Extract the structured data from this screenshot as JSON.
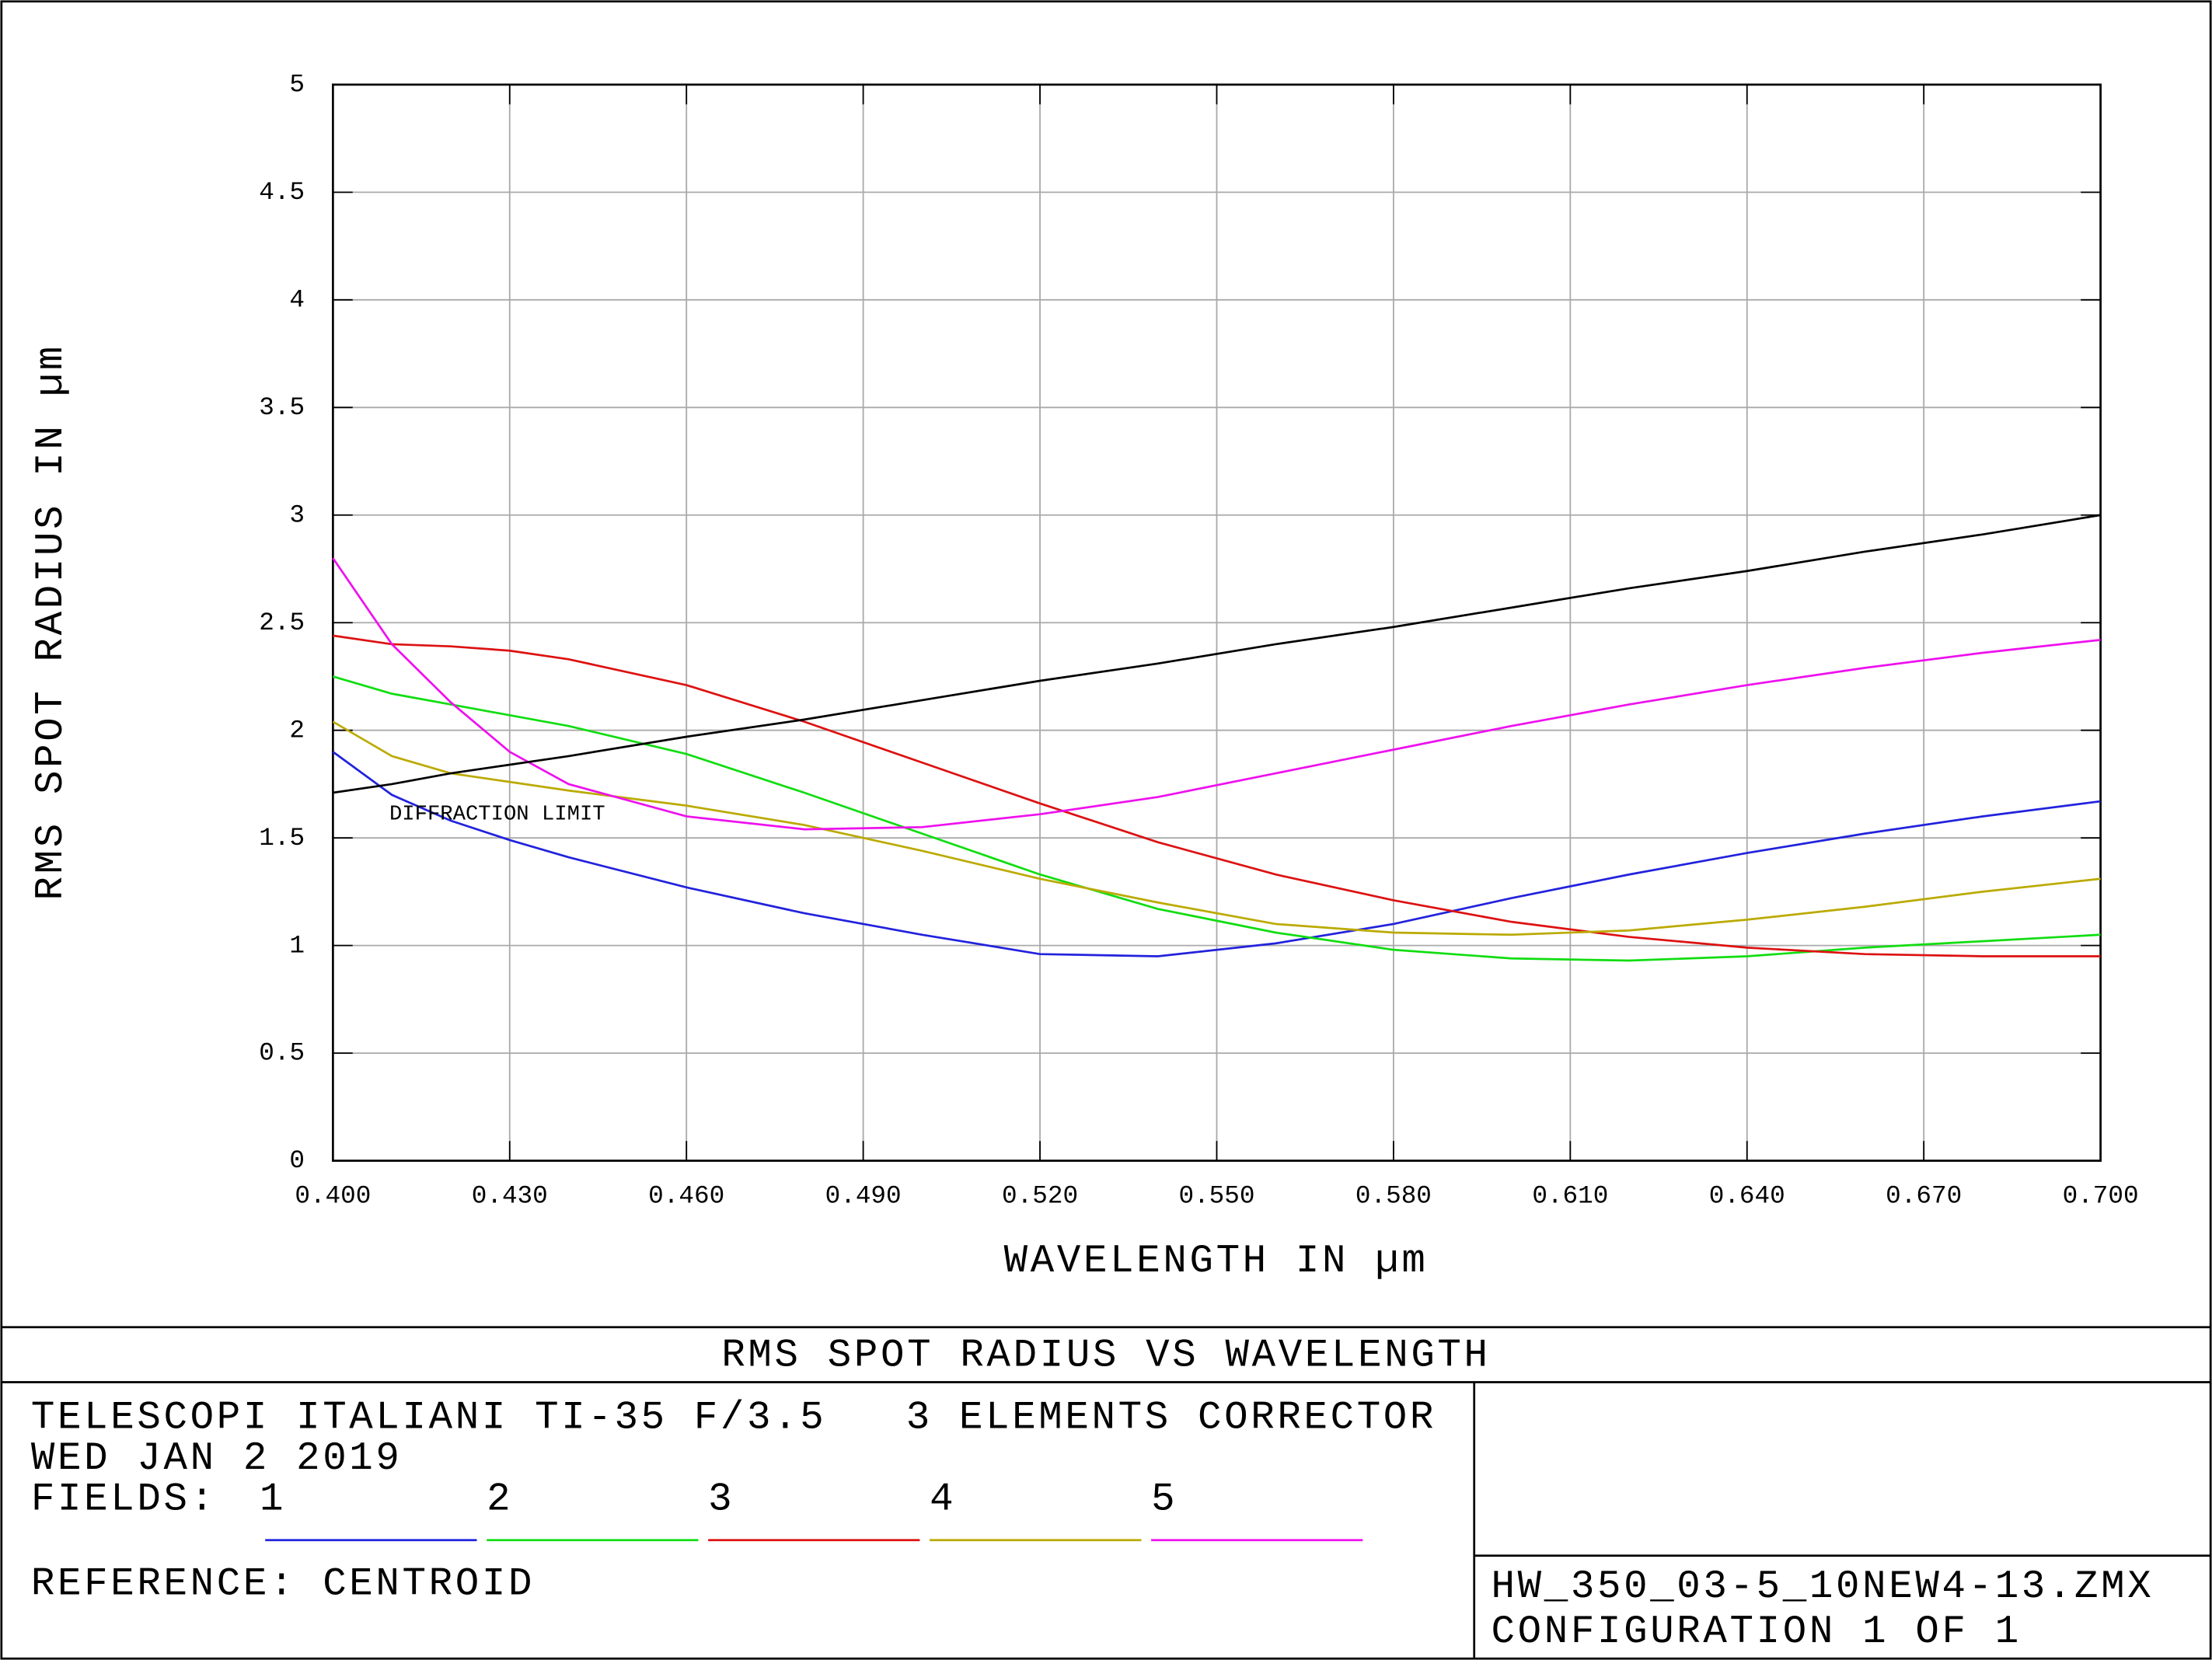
{
  "chart_data": {
    "type": "line",
    "title": "RMS SPOT RADIUS VS WAVELENGTH",
    "xlabel": "WAVELENGTH IN µm",
    "ylabel": "RMS SPOT RADIUS IN µm",
    "description": [
      "TELESCOPI ITALIANI TI-35 F/3.5   3 ELEMENTS CORRECTOR",
      "WED JAN 2 2019"
    ],
    "legend_title": "FIELDS:",
    "reference": "REFERENCE: CENTROID",
    "file": "HW_350_03-5_10NEW4-13.ZMX",
    "configuration": "CONFIGURATION 1 OF 1",
    "grid": true,
    "x": [
      0.4,
      0.41,
      0.42,
      0.43,
      0.44,
      0.46,
      0.48,
      0.5,
      0.52,
      0.54,
      0.56,
      0.58,
      0.6,
      0.62,
      0.64,
      0.66,
      0.68,
      0.7
    ],
    "xlim": [
      0.4,
      0.7
    ],
    "xticks": [
      {
        "value": 0.4,
        "label": "0.400"
      },
      {
        "value": 0.43,
        "label": "0.430"
      },
      {
        "value": 0.46,
        "label": "0.460"
      },
      {
        "value": 0.49,
        "label": "0.490"
      },
      {
        "value": 0.52,
        "label": "0.520"
      },
      {
        "value": 0.55,
        "label": "0.550"
      },
      {
        "value": 0.58,
        "label": "0.580"
      },
      {
        "value": 0.61,
        "label": "0.610"
      },
      {
        "value": 0.64,
        "label": "0.640"
      },
      {
        "value": 0.67,
        "label": "0.670"
      },
      {
        "value": 0.7,
        "label": "0.700"
      }
    ],
    "ylim": [
      0,
      5
    ],
    "yticks": [
      0,
      0.5,
      1,
      1.5,
      2,
      2.5,
      3,
      3.5,
      4,
      4.5,
      5
    ],
    "series": [
      {
        "name": "1",
        "color": "#2222dd",
        "values": [
          1.9,
          1.7,
          1.58,
          1.49,
          1.41,
          1.27,
          1.15,
          1.05,
          0.96,
          0.95,
          1.01,
          1.1,
          1.22,
          1.33,
          1.43,
          1.52,
          1.6,
          1.67
        ]
      },
      {
        "name": "2",
        "color": "#11dd11",
        "values": [
          2.25,
          2.17,
          2.12,
          2.07,
          2.02,
          1.89,
          1.71,
          1.52,
          1.33,
          1.17,
          1.06,
          0.98,
          0.94,
          0.93,
          0.95,
          0.99,
          1.02,
          1.05
        ]
      },
      {
        "name": "3",
        "color": "#dd1111",
        "values": [
          2.44,
          2.4,
          2.39,
          2.37,
          2.33,
          2.21,
          2.04,
          1.85,
          1.66,
          1.48,
          1.33,
          1.21,
          1.11,
          1.04,
          0.99,
          0.96,
          0.95,
          0.95
        ]
      },
      {
        "name": "4",
        "color": "#bbaa00",
        "values": [
          2.04,
          1.88,
          1.8,
          1.76,
          1.72,
          1.65,
          1.56,
          1.44,
          1.31,
          1.2,
          1.1,
          1.06,
          1.05,
          1.07,
          1.12,
          1.18,
          1.25,
          1.31
        ]
      },
      {
        "name": "5",
        "color": "#ee11ee",
        "values": [
          2.8,
          2.4,
          2.13,
          1.9,
          1.75,
          1.6,
          1.54,
          1.55,
          1.61,
          1.69,
          1.8,
          1.91,
          2.02,
          2.12,
          2.21,
          2.29,
          2.36,
          2.42
        ]
      },
      {
        "name": "DIFFRACTION LIMIT",
        "color": "#000000",
        "values": [
          1.71,
          1.75,
          1.8,
          1.84,
          1.88,
          1.97,
          2.05,
          2.14,
          2.23,
          2.31,
          2.4,
          2.48,
          2.57,
          2.66,
          2.74,
          2.83,
          2.91,
          3.0
        ]
      }
    ]
  }
}
